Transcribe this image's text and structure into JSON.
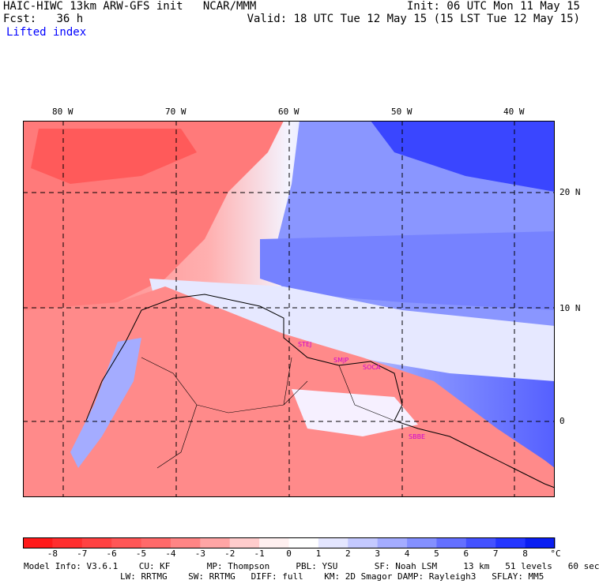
{
  "header": {
    "model_line": "HAIC-HIWC 13km ARW-GFS init   NCAR/MMM",
    "forecast_label": "Fcst:",
    "forecast_value": "36 h",
    "field_name": "Lifted index",
    "init_time": "Init: 06 UTC Mon 11 May 15",
    "valid_time": "Valid: 18 UTC Tue 12 May 15 (15 LST Tue 12 May 15)"
  },
  "map": {
    "lon_labels": [
      "80 W",
      "70 W",
      "60 W",
      "50 W",
      "40 W"
    ],
    "lat_labels": [
      "20 N",
      "10 N",
      "0"
    ],
    "station_labels": [
      "STEJ",
      "SMJP",
      "SOCA",
      "SBBE"
    ],
    "colors": {
      "positive_max": "#0000e0",
      "negative_max": "#ff2020",
      "neutral": "#ffffff",
      "station_label": "#d000d0"
    }
  },
  "colorbar": {
    "ticks": [
      "-8",
      "-7",
      "-6",
      "-5",
      "-4",
      "-3",
      "-2",
      "-1",
      "0",
      "1",
      "2",
      "3",
      "4",
      "5",
      "6",
      "7",
      "8"
    ],
    "unit": "°C",
    "colors": [
      "#ff1a1a",
      "#ff2e2e",
      "#ff4242",
      "#ff5656",
      "#ff6a6a",
      "#ff8585",
      "#ffa5a5",
      "#ffcccc",
      "#fff0f0",
      "#ffffff",
      "#e4e6ff",
      "#c4c9ff",
      "#a4acff",
      "#8490ff",
      "#6470ff",
      "#4452ff",
      "#2436ff",
      "#0a1ef2"
    ]
  },
  "footer": {
    "line1": "Model Info: V3.6.1    CU: KF       MP: Thompson     PBL: YSU       SF: Noah LSM     13 km   51 levels   60 sec",
    "line2": "LW: RRTMG    SW: RRTMG   DIFF: full    KM: 2D Smagor DAMP: Rayleigh3   SFLAY: MM5"
  }
}
